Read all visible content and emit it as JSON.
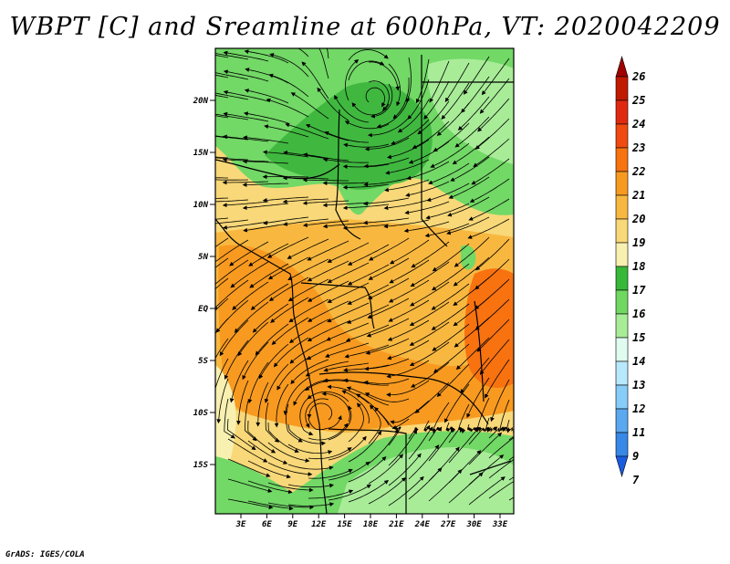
{
  "title": "WBPT [C] and Sreamline at 600hPa, VT: 2020042209",
  "credit": "GrADS: IGES/COLA",
  "map": {
    "lat_labels": [
      "20N",
      "15N",
      "10N",
      "5N",
      "EQ",
      "5S",
      "10S",
      "15S"
    ],
    "lon_labels": [
      "3E",
      "6E",
      "9E",
      "12E",
      "15E",
      "18E",
      "21E",
      "24E",
      "27E",
      "30E",
      "33E"
    ]
  },
  "colorbar": {
    "labels": [
      "26",
      "25",
      "24",
      "23",
      "22",
      "21",
      "20",
      "19",
      "18",
      "17",
      "16",
      "15",
      "14",
      "13",
      "12",
      "11",
      "9",
      "7"
    ],
    "colors": [
      "#a00000",
      "#c01a00",
      "#e02a10",
      "#f04a10",
      "#f87210",
      "#f89a20",
      "#f8b840",
      "#f8d878",
      "#f8f0b0",
      "#38b838",
      "#70d860",
      "#a8ec98",
      "#e0fcf0",
      "#b8e8fc",
      "#88ccf8",
      "#5aa8f0",
      "#3888e8",
      "#1a5ce0"
    ]
  },
  "field_colors": {
    "green_dark": "#40b840",
    "green_mid": "#72d866",
    "green_light": "#a8ec98",
    "yellow": "#f8f0b0",
    "tan": "#f8d878",
    "orange_light": "#f8b840",
    "orange": "#f89a20",
    "orange_dark": "#f87210"
  }
}
